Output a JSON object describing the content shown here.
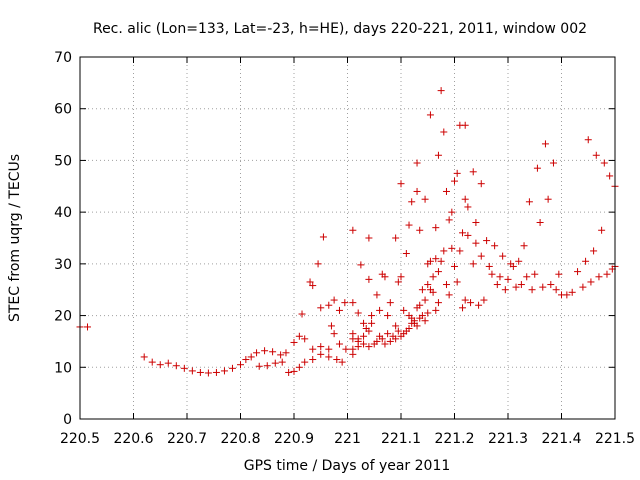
{
  "chart_data": {
    "type": "scatter",
    "title": "Rec. alic (Lon=133, Lat=-23, h=HE), days 220-221, 2011, window 002",
    "xlabel": "GPS time / Days of year 2011",
    "ylabel": "STEC from uqrg / TECUs",
    "xlim": [
      220.5,
      221.5
    ],
    "ylim": [
      0,
      70
    ],
    "x_ticks": [
      "220.5",
      "220.6",
      "220.7",
      "220.8",
      "220.9",
      "221",
      "221.1",
      "221.2",
      "221.3",
      "221.4",
      "221.5"
    ],
    "y_ticks": [
      "0",
      "10",
      "20",
      "30",
      "40",
      "50",
      "60",
      "70"
    ],
    "grid": true,
    "marker": "plus",
    "color": "#cc0000",
    "points": [
      [
        220.5,
        17.8
      ],
      [
        220.514,
        17.8
      ],
      [
        220.62,
        12.0
      ],
      [
        220.635,
        11.0
      ],
      [
        220.65,
        10.5
      ],
      [
        220.665,
        10.8
      ],
      [
        220.68,
        10.3
      ],
      [
        220.695,
        9.8
      ],
      [
        220.71,
        9.3
      ],
      [
        220.725,
        9.0
      ],
      [
        220.74,
        8.9
      ],
      [
        220.755,
        9.0
      ],
      [
        220.77,
        9.3
      ],
      [
        220.785,
        9.8
      ],
      [
        220.8,
        10.5
      ],
      [
        220.81,
        11.5
      ],
      [
        220.82,
        12.0
      ],
      [
        220.83,
        12.8
      ],
      [
        220.845,
        13.2
      ],
      [
        220.86,
        13.0
      ],
      [
        220.875,
        12.4
      ],
      [
        220.885,
        12.8
      ],
      [
        220.835,
        10.2
      ],
      [
        220.85,
        10.3
      ],
      [
        220.865,
        10.8
      ],
      [
        220.878,
        11.0
      ],
      [
        220.89,
        9.0
      ],
      [
        220.9,
        9.2
      ],
      [
        220.91,
        10.0
      ],
      [
        220.92,
        11.0
      ],
      [
        220.935,
        11.5
      ],
      [
        220.95,
        12.5
      ],
      [
        220.965,
        12.0
      ],
      [
        220.98,
        11.5
      ],
      [
        220.99,
        11.0
      ],
      [
        220.9,
        14.8
      ],
      [
        220.91,
        16.0
      ],
      [
        220.92,
        15.5
      ],
      [
        220.935,
        13.5
      ],
      [
        220.95,
        14.0
      ],
      [
        220.965,
        13.5
      ],
      [
        220.975,
        16.5
      ],
      [
        220.985,
        14.5
      ],
      [
        220.997,
        13.5
      ],
      [
        220.915,
        20.3
      ],
      [
        220.93,
        26.5
      ],
      [
        220.935,
        25.8
      ],
      [
        220.945,
        30.0
      ],
      [
        220.955,
        35.2
      ],
      [
        220.95,
        21.5
      ],
      [
        220.965,
        22.0
      ],
      [
        220.97,
        18.0
      ],
      [
        220.975,
        23.0
      ],
      [
        220.985,
        21.0
      ],
      [
        220.995,
        22.5
      ],
      [
        221.01,
        12.5
      ],
      [
        221.01,
        13.5
      ],
      [
        221.01,
        15.5
      ],
      [
        221.01,
        16.5
      ],
      [
        221.02,
        14.0
      ],
      [
        221.02,
        15.0
      ],
      [
        221.02,
        15.5
      ],
      [
        221.03,
        14.5
      ],
      [
        221.03,
        16.0
      ],
      [
        221.035,
        17.5
      ],
      [
        221.04,
        14.0
      ],
      [
        221.04,
        17.0
      ],
      [
        221.045,
        18.5
      ],
      [
        221.05,
        14.5
      ],
      [
        221.055,
        15.0
      ],
      [
        221.06,
        16.0
      ],
      [
        221.065,
        15.5
      ],
      [
        221.07,
        14.5
      ],
      [
        221.075,
        16.5
      ],
      [
        221.08,
        15.0
      ],
      [
        221.085,
        16.0
      ],
      [
        221.09,
        15.5
      ],
      [
        221.095,
        17.0
      ],
      [
        221.1,
        16.0
      ],
      [
        221.105,
        16.5
      ],
      [
        221.11,
        17.0
      ],
      [
        221.115,
        17.5
      ],
      [
        221.12,
        18.5
      ],
      [
        221.125,
        19.0
      ],
      [
        221.13,
        18.0
      ],
      [
        221.135,
        19.5
      ],
      [
        221.14,
        20.0
      ],
      [
        221.145,
        19.0
      ],
      [
        221.15,
        20.5
      ],
      [
        221.01,
        22.5
      ],
      [
        221.02,
        20.5
      ],
      [
        221.025,
        29.8
      ],
      [
        221.03,
        18.5
      ],
      [
        221.04,
        35.0
      ],
      [
        221.045,
        20.0
      ],
      [
        221.055,
        24.0
      ],
      [
        221.06,
        21.0
      ],
      [
        221.065,
        28.0
      ],
      [
        221.07,
        27.5
      ],
      [
        221.075,
        20.0
      ],
      [
        221.08,
        22.5
      ],
      [
        221.09,
        18.0
      ],
      [
        221.095,
        26.5
      ],
      [
        221.1,
        27.5
      ],
      [
        221.105,
        21.0
      ],
      [
        221.11,
        32.0
      ],
      [
        221.115,
        20.0
      ],
      [
        221.12,
        19.5
      ],
      [
        221.125,
        18.5
      ],
      [
        221.13,
        21.5
      ],
      [
        221.135,
        22.0
      ],
      [
        221.14,
        25.0
      ],
      [
        221.145,
        23.0
      ],
      [
        221.15,
        26.0
      ],
      [
        221.155,
        25.0
      ],
      [
        221.16,
        24.5
      ],
      [
        221.165,
        21.0
      ],
      [
        221.17,
        22.5
      ],
      [
        221.01,
        36.5
      ],
      [
        221.04,
        27.0
      ],
      [
        221.09,
        35.0
      ],
      [
        221.1,
        45.5
      ],
      [
        221.115,
        37.5
      ],
      [
        221.12,
        42.0
      ],
      [
        221.13,
        44.0
      ],
      [
        221.13,
        49.5
      ],
      [
        221.135,
        36.5
      ],
      [
        221.145,
        42.5
      ],
      [
        221.15,
        30.0
      ],
      [
        221.155,
        58.8
      ],
      [
        221.16,
        27.5
      ],
      [
        221.165,
        37.0
      ],
      [
        221.17,
        51.0
      ],
      [
        221.175,
        63.5
      ],
      [
        221.18,
        55.5
      ],
      [
        221.185,
        44.0
      ],
      [
        221.19,
        38.5
      ],
      [
        221.195,
        40.0
      ],
      [
        221.2,
        46.0
      ],
      [
        221.205,
        47.5
      ],
      [
        221.21,
        56.8
      ],
      [
        221.215,
        36.0
      ],
      [
        221.22,
        56.8
      ],
      [
        221.22,
        42.5
      ],
      [
        221.225,
        41.0
      ],
      [
        221.235,
        47.8
      ],
      [
        221.24,
        38.0
      ],
      [
        221.25,
        45.5
      ],
      [
        221.155,
        30.5
      ],
      [
        221.165,
        31.0
      ],
      [
        221.17,
        28.5
      ],
      [
        221.175,
        30.5
      ],
      [
        221.18,
        32.5
      ],
      [
        221.185,
        26.0
      ],
      [
        221.19,
        24.0
      ],
      [
        221.195,
        33.0
      ],
      [
        221.2,
        29.5
      ],
      [
        221.205,
        26.5
      ],
      [
        221.21,
        32.5
      ],
      [
        221.215,
        21.5
      ],
      [
        221.22,
        23.0
      ],
      [
        221.225,
        35.5
      ],
      [
        221.23,
        22.5
      ],
      [
        221.235,
        30.0
      ],
      [
        221.24,
        34.0
      ],
      [
        221.245,
        22.0
      ],
      [
        221.25,
        31.5
      ],
      [
        221.255,
        23.0
      ],
      [
        221.26,
        34.5
      ],
      [
        221.265,
        29.5
      ],
      [
        221.27,
        28.0
      ],
      [
        221.275,
        33.5
      ],
      [
        221.28,
        26.0
      ],
      [
        221.285,
        27.5
      ],
      [
        221.29,
        31.5
      ],
      [
        221.295,
        25.0
      ],
      [
        221.3,
        27.0
      ],
      [
        221.305,
        30.0
      ],
      [
        221.31,
        29.5
      ],
      [
        221.315,
        25.5
      ],
      [
        221.32,
        30.5
      ],
      [
        221.325,
        26.0
      ],
      [
        221.33,
        33.5
      ],
      [
        221.335,
        27.5
      ],
      [
        221.34,
        42.0
      ],
      [
        221.345,
        25.0
      ],
      [
        221.35,
        28.0
      ],
      [
        221.355,
        48.5
      ],
      [
        221.36,
        38.0
      ],
      [
        221.365,
        25.5
      ],
      [
        221.37,
        53.2
      ],
      [
        221.375,
        42.5
      ],
      [
        221.38,
        26.0
      ],
      [
        221.385,
        49.5
      ],
      [
        221.39,
        25.0
      ],
      [
        221.395,
        28.0
      ],
      [
        221.4,
        24.0
      ],
      [
        221.41,
        24.0
      ],
      [
        221.42,
        24.5
      ],
      [
        221.43,
        28.5
      ],
      [
        221.44,
        25.5
      ],
      [
        221.445,
        30.5
      ],
      [
        221.45,
        54.0
      ],
      [
        221.455,
        26.5
      ],
      [
        221.46,
        32.5
      ],
      [
        221.465,
        51.0
      ],
      [
        221.47,
        27.5
      ],
      [
        221.475,
        36.5
      ],
      [
        221.48,
        49.5
      ],
      [
        221.485,
        28.0
      ],
      [
        221.49,
        47.0
      ],
      [
        221.495,
        29.0
      ],
      [
        221.5,
        45.0
      ],
      [
        221.5,
        29.5
      ]
    ]
  }
}
